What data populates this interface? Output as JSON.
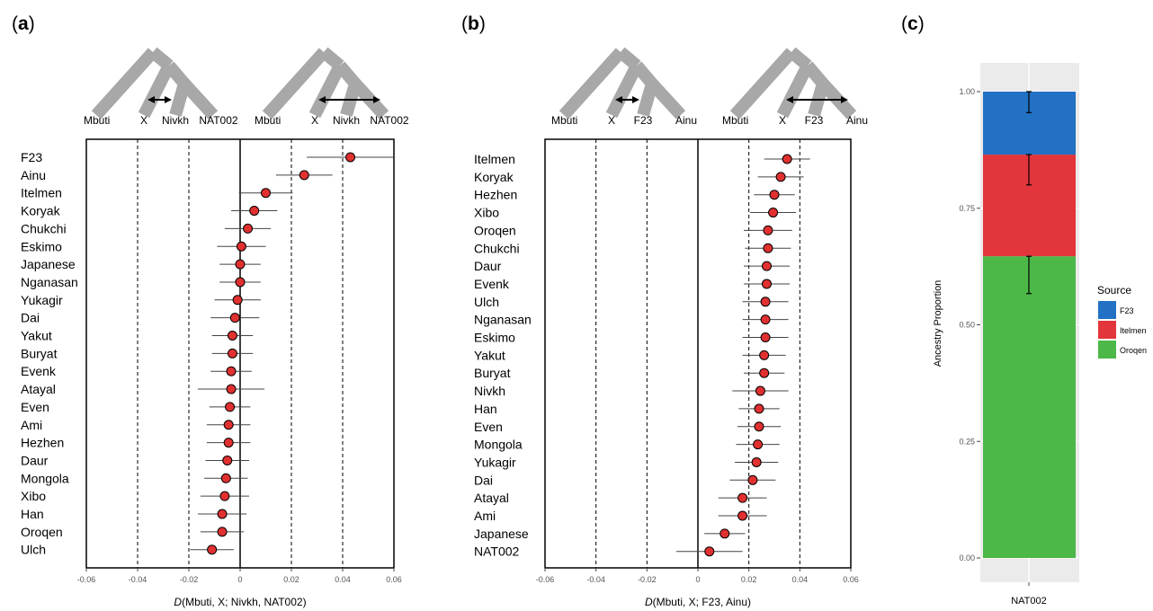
{
  "panel_labels": {
    "a": "a",
    "b": "b",
    "c": "c"
  },
  "trees": {
    "a": {
      "left": [
        "Mbuti",
        "X",
        "Nivkh",
        "NAT002"
      ],
      "right": [
        "Mbuti",
        "X",
        "Nivkh",
        "NAT002"
      ]
    },
    "b": {
      "left": [
        "Mbuti",
        "X",
        "F23",
        "Ainu"
      ],
      "right": [
        "Mbuti",
        "X",
        "F23",
        "Ainu"
      ]
    }
  },
  "colors": {
    "point_fill": "#e03030",
    "tree_gray": "#a8a8a8",
    "bar_F23": "#2271c4",
    "bar_Itelmen": "#e2353c",
    "bar_Oroqen": "#4cb848",
    "panel_bg": "#ebebeb"
  },
  "chart_data": [
    {
      "type": "scatter",
      "panel": "a",
      "xlabel_italic": "D",
      "xlabel_rest": "(Mbuti, X; Nivkh, NAT002)",
      "xlim": [
        -0.06,
        0.06
      ],
      "xticks": [
        "-0.06",
        "-0.04",
        "-0.02",
        "0",
        "0.02",
        "0.04",
        "0.06"
      ],
      "dashed_lines": [
        -0.04,
        -0.02,
        0.02,
        0.04
      ],
      "categories": [
        "F23",
        "Ainu",
        "Itelmen",
        "Koryak",
        "Chukchi",
        "Eskimo",
        "Japanese",
        "Nganasan",
        "Yukagir",
        "Dai",
        "Yakut",
        "Buryat",
        "Evenk",
        "Atayal",
        "Even",
        "Ami",
        "Hezhen",
        "Daur",
        "Mongola",
        "Xibo",
        "Han",
        "Oroqen",
        "Ulch"
      ],
      "values": [
        0.043,
        0.025,
        0.01,
        0.0055,
        0.003,
        0.0005,
        0.0,
        0.0,
        -0.001,
        -0.002,
        -0.003,
        -0.003,
        -0.0035,
        -0.0035,
        -0.004,
        -0.0045,
        -0.0045,
        -0.005,
        -0.0055,
        -0.006,
        -0.007,
        -0.007,
        -0.011
      ],
      "errors": [
        0.017,
        0.011,
        0.0105,
        0.009,
        0.009,
        0.0095,
        0.008,
        0.008,
        0.009,
        0.0095,
        0.008,
        0.008,
        0.008,
        0.013,
        0.008,
        0.0085,
        0.0085,
        0.0085,
        0.0085,
        0.0095,
        0.0095,
        0.0085,
        0.0085
      ]
    },
    {
      "type": "scatter",
      "panel": "b",
      "xlabel_italic": "D",
      "xlabel_rest": "(Mbuti, X; F23, Ainu)",
      "xlim": [
        -0.06,
        0.06
      ],
      "xticks": [
        "-0.06",
        "-0.04",
        "-0.02",
        "0",
        "0.02",
        "0.04",
        "0.06"
      ],
      "dashed_lines": [
        -0.04,
        -0.02,
        0.02,
        0.04
      ],
      "categories": [
        "Itelmen",
        "Koryak",
        "Hezhen",
        "Xibo",
        "Oroqen",
        "Chukchi",
        "Daur",
        "Evenk",
        "Ulch",
        "Nganasan",
        "Eskimo",
        "Yakut",
        "Buryat",
        "Nivkh",
        "Han",
        "Even",
        "Mongola",
        "Yukagir",
        "Dai",
        "Atayal",
        "Ami",
        "Japanese",
        "NAT002"
      ],
      "values": [
        0.035,
        0.0325,
        0.03,
        0.0295,
        0.0275,
        0.0275,
        0.027,
        0.027,
        0.0265,
        0.0265,
        0.0265,
        0.026,
        0.026,
        0.0245,
        0.024,
        0.024,
        0.0235,
        0.023,
        0.0215,
        0.0175,
        0.0175,
        0.0105,
        0.0045
      ],
      "errors": [
        0.009,
        0.009,
        0.008,
        0.009,
        0.0095,
        0.009,
        0.009,
        0.009,
        0.009,
        0.009,
        0.009,
        0.0085,
        0.008,
        0.011,
        0.008,
        0.0085,
        0.0085,
        0.0085,
        0.009,
        0.0095,
        0.0095,
        0.008,
        0.013
      ]
    },
    {
      "type": "bar",
      "panel": "c",
      "stacked": true,
      "categories": [
        "NAT002"
      ],
      "ylabel": "Ancestry Proportion",
      "ylim": [
        0,
        1
      ],
      "yticks": [
        "0.00",
        "0.25",
        "0.50",
        "0.75",
        "1.00"
      ],
      "legend_title": "Source",
      "legend_position": "right",
      "series": [
        {
          "name": "Oroqen",
          "value": 0.647,
          "error_bar": [
            0.567,
            0.647
          ]
        },
        {
          "name": "Itelmen",
          "value": 0.218,
          "error_bar": [
            0.8,
            0.865
          ]
        },
        {
          "name": "F23",
          "value": 0.135,
          "error_bar": [
            0.955,
            1.0
          ]
        }
      ],
      "legend_order": [
        "F23",
        "Itelmen",
        "Oroqen"
      ]
    }
  ]
}
